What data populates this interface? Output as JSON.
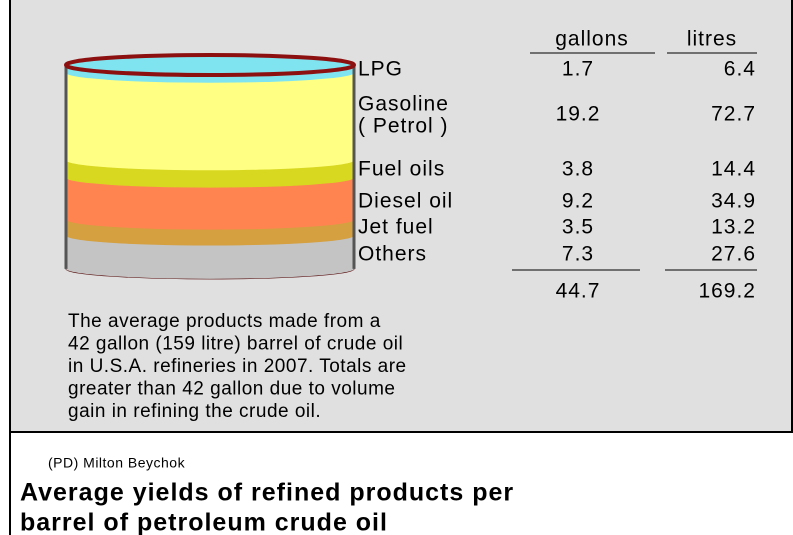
{
  "table": {
    "columns": [
      "gallons",
      "litres"
    ],
    "rows": [
      {
        "label": "LPG",
        "gallons": 1.7,
        "litres": 6.4,
        "color": "#80e4f0"
      },
      {
        "label": "Gasoline",
        "note": "( Petrol )",
        "gallons": 19.2,
        "litres": 72.7,
        "color": "#ffff84"
      },
      {
        "label": "Fuel oils",
        "gallons": 3.8,
        "litres": 14.4,
        "color": "#d8d820"
      },
      {
        "label": "Diesel oil",
        "gallons": 9.2,
        "litres": 34.9,
        "color": "#ff8450"
      },
      {
        "label": "Jet fuel",
        "gallons": 3.5,
        "litres": 13.2,
        "color": "#d4a040"
      },
      {
        "label": "Others",
        "gallons": 7.3,
        "litres": 27.6,
        "color": "#c4c4c4"
      }
    ],
    "totals": {
      "gallons": 44.7,
      "litres": 169.2
    }
  },
  "description": [
    "The average products made from a",
    "42 gallon  (159 litre) barrel of crude oil",
    "in U.S.A. refineries in 2007. Totals are",
    "greater than 42 gallon due to volume",
    "gain in refining the crude oil."
  ],
  "attribution": "(PD) Milton Beychok",
  "caption": [
    "Average yields of refined products per",
    "barrel of petroleum crude oil"
  ]
}
